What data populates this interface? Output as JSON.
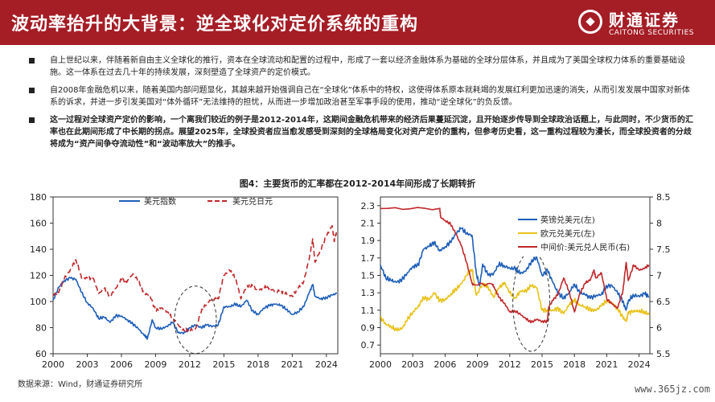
{
  "header": {
    "title": "波动率抬升的大背景：逆全球化对定价系统的重构",
    "logo_cn": "财通证券",
    "logo_en": "CAITONG SECURITIES",
    "color": "#a51d25"
  },
  "bullets": [
    "自上世纪以来，伴随着新自由主义全球化的推行，资本在全球流动和配置的过程中，形成了一套以经济金融体系为基础的全球分层体系，并且成为了美国全球权力体系的重要基础设施。这一体系在过去几十年的持续发展，深刻塑造了全球资产的定价模式。",
    "自2008年金融危机以来，随着美国内部问题显化，其越来越开始强调自己在“全球化”体系中的特权，这使得体系原本就耗竭的发展红利更加迅速的消失，从而引发发展中国家对新体系的诉求，并进一步引发美国对“体外循环”无法维持的担忧，从而进一步增加政治甚至军事手段的使用，推动“逆全球化”的负反馈。",
    "这一过程对全球资产定价的影响，一个离我们较近的例子是2012-2014年，这期间金融危机带来的经济后果蔓延沉淀，且开始逐步传导到全球政治话题上，与此同时，不少货币的汇率也在此期间形成了中长期的拐点。展望2025年，全球投资者应当愈发感受到深刻的全球格局变化对资产定价的重构，但参考历史看，这一重构过程较为漫长，而全球投资者的分歧将成为“资产间争夺流动性”和“波动率放大”的推手。"
  ],
  "figure_title": "图4：主要货币的汇率都在2012-2014年间形成了长期转折",
  "source": "数据来源：Wind，财通证券研究所",
  "watermark": "www.365jz.com",
  "chart_data": [
    {
      "type": "line",
      "series": [
        {
          "name": "美元指数",
          "color": "#1f5fb8",
          "style": "solid",
          "x": [
            2000,
            2000.5,
            2001,
            2001.5,
            2002,
            2002.5,
            2003,
            2003.5,
            2004,
            2004.5,
            2005,
            2005.5,
            2006,
            2006.5,
            2007,
            2007.5,
            2008,
            2008.3,
            2008.7,
            2009,
            2009.5,
            2010,
            2010.5,
            2011,
            2011.5,
            2012,
            2012.5,
            2013,
            2013.5,
            2014,
            2014.5,
            2015,
            2015.5,
            2016,
            2016.5,
            2017,
            2017.5,
            2018,
            2018.5,
            2019,
            2019.5,
            2020,
            2020.5,
            2021,
            2021.5,
            2022,
            2022.5,
            2022.8,
            2023,
            2023.5,
            2024,
            2024.5,
            2024.9
          ],
          "values": [
            101,
            111,
            116,
            118,
            117,
            107,
            99,
            95,
            87,
            88,
            84,
            89,
            89,
            86,
            83,
            79,
            74,
            72,
            86,
            80,
            79,
            81,
            84,
            76,
            76,
            80,
            82,
            80,
            82,
            81,
            82,
            96,
            96,
            98,
            96,
            101,
            93,
            90,
            95,
            97,
            98,
            97,
            94,
            90,
            92,
            96,
            107,
            113,
            104,
            102,
            103,
            105,
            106
          ]
        },
        {
          "name": "美元兑日元",
          "color": "#c0282b",
          "style": "dashed",
          "x": [
            2000,
            2000.5,
            2001,
            2001.5,
            2002,
            2002.5,
            2003,
            2003.5,
            2004,
            2004.5,
            2005,
            2005.5,
            2006,
            2006.5,
            2007,
            2007.5,
            2008,
            2008.5,
            2009,
            2009.5,
            2010,
            2010.5,
            2011,
            2011.5,
            2012,
            2012.5,
            2013,
            2013.5,
            2014,
            2014.5,
            2015,
            2015.5,
            2016,
            2016.5,
            2017,
            2017.5,
            2018,
            2018.5,
            2019,
            2019.5,
            2020,
            2020.5,
            2021,
            2021.5,
            2022,
            2022.5,
            2022.8,
            2023,
            2023.5,
            2024,
            2024.5,
            2024.7,
            2024.9
          ],
          "values": [
            105,
            107,
            118,
            124,
            132,
            118,
            118,
            118,
            106,
            110,
            104,
            110,
            117,
            115,
            121,
            116,
            106,
            105,
            93,
            95,
            92,
            87,
            82,
            78,
            78,
            79,
            92,
            99,
            102,
            102,
            120,
            124,
            118,
            102,
            112,
            112,
            108,
            111,
            110,
            108,
            108,
            106,
            104,
            110,
            115,
            133,
            148,
            130,
            140,
            150,
            158,
            146,
            154
          ]
        }
      ],
      "ylim": [
        60,
        180
      ],
      "yticks": [
        60,
        80,
        100,
        120,
        140,
        160,
        180
      ],
      "xlim": [
        2000,
        2025
      ],
      "xticks": [
        2000,
        2003,
        2006,
        2009,
        2012,
        2015,
        2018,
        2021,
        2024
      ],
      "legend": "top-left"
    },
    {
      "type": "line",
      "series": [
        {
          "name": "英镑兑美元(左)",
          "axis": "left",
          "color": "#1f5fb8",
          "style": "solid",
          "x": [
            2000,
            2000.5,
            2001,
            2001.5,
            2002,
            2002.5,
            2003,
            2003.5,
            2004,
            2004.5,
            2005,
            2005.5,
            2006,
            2006.5,
            2007,
            2007.5,
            2008,
            2008.5,
            2008.9,
            2009.2,
            2009.5,
            2010,
            2010.5,
            2011,
            2011.5,
            2012,
            2012.5,
            2013,
            2013.5,
            2014,
            2014.5,
            2015,
            2015.5,
            2016,
            2016.5,
            2017,
            2017.5,
            2018,
            2018.5,
            2019,
            2019.5,
            2020,
            2020.5,
            2021,
            2021.5,
            2022,
            2022.5,
            2022.8,
            2023,
            2023.5,
            2024,
            2024.5,
            2024.9
          ],
          "values": [
            1.62,
            1.47,
            1.44,
            1.42,
            1.45,
            1.53,
            1.6,
            1.62,
            1.8,
            1.83,
            1.88,
            1.78,
            1.83,
            1.88,
            1.98,
            2.04,
            1.98,
            1.96,
            1.52,
            1.38,
            1.63,
            1.5,
            1.52,
            1.63,
            1.61,
            1.58,
            1.58,
            1.52,
            1.55,
            1.66,
            1.71,
            1.5,
            1.56,
            1.42,
            1.29,
            1.24,
            1.3,
            1.4,
            1.3,
            1.28,
            1.24,
            1.27,
            1.28,
            1.38,
            1.38,
            1.3,
            1.2,
            1.1,
            1.21,
            1.27,
            1.26,
            1.29,
            1.26
          ]
        },
        {
          "name": "欧元兑美元(左)",
          "axis": "left",
          "color": "#e9c21b",
          "style": "solid",
          "x": [
            2000,
            2000.5,
            2001,
            2001.5,
            2002,
            2002.5,
            2003,
            2003.5,
            2004,
            2004.5,
            2005,
            2005.5,
            2006,
            2006.5,
            2007,
            2007.5,
            2008,
            2008.5,
            2008.9,
            2009.5,
            2010,
            2010.5,
            2011,
            2011.5,
            2012,
            2012.5,
            2013,
            2013.5,
            2014,
            2014.5,
            2015,
            2015.5,
            2016,
            2016.5,
            2017,
            2017.5,
            2018,
            2018.5,
            2019,
            2019.5,
            2020,
            2020.5,
            2021,
            2021.5,
            2022,
            2022.5,
            2022.8,
            2023,
            2023.5,
            2024,
            2024.5,
            2024.9
          ],
          "values": [
            1.02,
            0.94,
            0.91,
            0.87,
            0.89,
            0.99,
            1.08,
            1.14,
            1.25,
            1.22,
            1.3,
            1.21,
            1.22,
            1.28,
            1.34,
            1.4,
            1.5,
            1.57,
            1.27,
            1.41,
            1.36,
            1.25,
            1.35,
            1.42,
            1.3,
            1.24,
            1.32,
            1.32,
            1.38,
            1.36,
            1.1,
            1.1,
            1.1,
            1.12,
            1.06,
            1.16,
            1.22,
            1.16,
            1.14,
            1.1,
            1.1,
            1.15,
            1.21,
            1.18,
            1.12,
            1.02,
            0.97,
            1.07,
            1.09,
            1.09,
            1.08,
            1.05
          ]
        },
        {
          "name": "中间价:美元兑人民币(右)",
          "axis": "right",
          "color": "#c0282b",
          "style": "solid",
          "x": [
            2000,
            2005.5,
            2005.6,
            2006,
            2006.5,
            2007,
            2007.5,
            2008,
            2008.5,
            2008.6,
            2010.4,
            2010.6,
            2011,
            2011.5,
            2012,
            2012.5,
            2013,
            2013.5,
            2014,
            2014.5,
            2015,
            2015.5,
            2015.6,
            2016,
            2016.5,
            2017,
            2017.5,
            2018,
            2018.5,
            2019,
            2019.5,
            2019.8,
            2020,
            2020.5,
            2021,
            2021.5,
            2022,
            2022.5,
            2022.8,
            2023,
            2023.5,
            2024,
            2024.5,
            2024.9
          ],
          "values": [
            8.28,
            8.28,
            8.11,
            8.05,
            7.98,
            7.8,
            7.57,
            7.25,
            6.85,
            6.83,
            6.83,
            6.75,
            6.58,
            6.47,
            6.3,
            6.32,
            6.25,
            6.17,
            6.1,
            6.16,
            6.12,
            6.12,
            6.39,
            6.52,
            6.65,
            6.95,
            6.7,
            6.3,
            6.65,
            6.85,
            6.92,
            7.1,
            6.95,
            7.05,
            6.55,
            6.45,
            6.37,
            6.7,
            7.25,
            6.9,
            7.2,
            7.1,
            7.13,
            7.2
          ]
        }
      ],
      "left_ylim": [
        0.6,
        2.4
      ],
      "left_yticks": [
        0.7,
        0.9,
        1.1,
        1.3,
        1.5,
        1.7,
        1.9,
        2.1,
        2.3
      ],
      "right_ylim": [
        5.5,
        8.5
      ],
      "right_yticks": [
        5.5,
        6,
        6.5,
        7,
        7.5,
        8,
        8.5
      ],
      "xlim": [
        2000,
        2025
      ],
      "xticks": [
        2000,
        2003,
        2006,
        2009,
        2012,
        2015,
        2018,
        2021,
        2024
      ],
      "legend": "top-right"
    }
  ]
}
